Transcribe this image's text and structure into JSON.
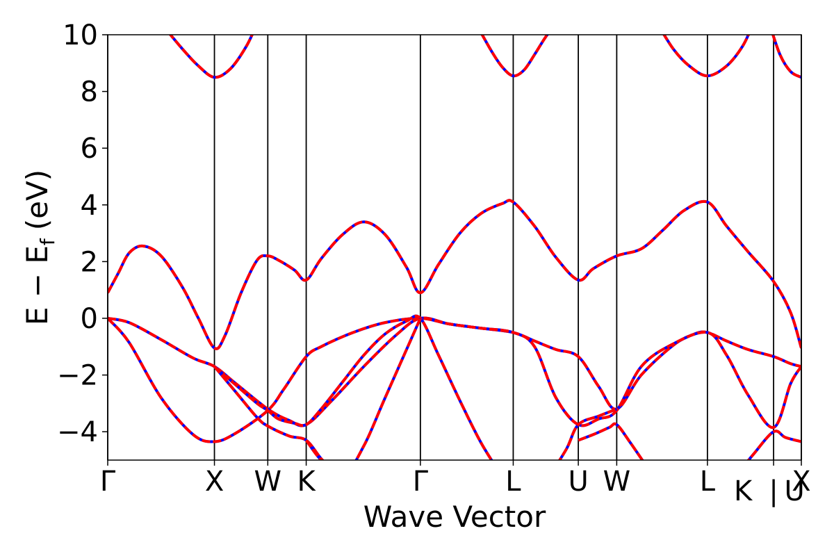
{
  "chart_data": {
    "type": "line",
    "xlabel": "Wave Vector",
    "ylabel_main": "E − E",
    "ylabel_sub": "f",
    "ylabel_unit": "(eV)",
    "xlim": [
      0,
      6.5
    ],
    "ylim": [
      -5,
      10
    ],
    "yticks": [
      -4,
      -2,
      0,
      2,
      4,
      6,
      8,
      10
    ],
    "ytick_labels": [
      "−4",
      "−2",
      "0",
      "2",
      "4",
      "6",
      "8",
      "10"
    ],
    "high_symmetry_points": [
      {
        "label": "Γ",
        "x": 0
      },
      {
        "label": "X",
        "x": 1.0
      },
      {
        "label": "W",
        "x": 1.5
      },
      {
        "label": "K",
        "x": 1.86
      },
      {
        "label": "Γ",
        "x": 2.93
      },
      {
        "label": "L",
        "x": 3.8
      },
      {
        "label": "U",
        "x": 4.41
      },
      {
        "label": "W",
        "x": 4.77
      },
      {
        "label": "L",
        "x": 5.62
      },
      {
        "label": "K",
        "x": 6.24
      },
      {
        "label": "|",
        "x": 6.24
      },
      {
        "label": "U",
        "x": 6.24
      },
      {
        "label": "X",
        "x": 6.5
      }
    ],
    "series_colors": {
      "spin_up": "#0000ff",
      "spin_down": "#ff0000"
    },
    "bands": [
      {
        "x": [
          0,
          0.1,
          0.2,
          0.33,
          0.5,
          0.7,
          0.85,
          1.0,
          1.1,
          1.25,
          1.4,
          1.5,
          1.6,
          1.75,
          1.86,
          2.0,
          2.2,
          2.4,
          2.6,
          2.8,
          2.93,
          3.1,
          3.3,
          3.5,
          3.7,
          3.8,
          4.0,
          4.2,
          4.41,
          4.55,
          4.77,
          5.0,
          5.2,
          5.4,
          5.62,
          5.8,
          6.0,
          6.24,
          6.4,
          6.5
        ],
        "y": [
          0.9,
          1.6,
          2.3,
          2.55,
          2.2,
          1.1,
          0.0,
          -1.05,
          -0.6,
          0.9,
          2.05,
          2.2,
          2.05,
          1.7,
          1.35,
          2.1,
          2.95,
          3.4,
          2.95,
          1.8,
          0.9,
          1.9,
          3.0,
          3.7,
          4.05,
          4.1,
          3.25,
          2.15,
          1.35,
          1.75,
          2.2,
          2.45,
          3.1,
          3.8,
          4.1,
          3.25,
          2.35,
          1.3,
          0.2,
          -1.05
        ]
      },
      {
        "x": [
          0,
          0.2,
          0.5,
          0.8,
          1.0,
          1.2,
          1.5,
          1.7,
          1.86,
          2.1,
          2.4,
          2.7,
          2.93,
          3.2,
          3.5,
          3.8,
          4.0,
          4.2,
          4.41,
          4.6,
          4.77,
          5.0,
          5.3,
          5.5,
          5.62,
          5.8,
          6.0,
          6.24,
          6.4,
          6.5
        ],
        "y": [
          0.0,
          -0.15,
          -0.75,
          -1.4,
          -1.7,
          -2.3,
          -3.2,
          -3.6,
          -3.75,
          -2.9,
          -1.7,
          -0.6,
          0.0,
          -0.2,
          -0.35,
          -0.5,
          -0.8,
          -1.1,
          -1.35,
          -2.4,
          -3.2,
          -2.0,
          -0.95,
          -0.55,
          -0.5,
          -0.8,
          -1.1,
          -1.35,
          -1.6,
          -1.7
        ]
      },
      {
        "x": [
          0,
          0.2,
          0.5,
          0.8,
          1.0,
          1.2,
          1.5,
          1.65,
          1.86,
          2.0,
          2.3,
          2.6,
          2.93,
          3.2,
          3.5,
          3.8,
          4.0,
          4.2,
          4.41,
          4.6,
          4.77,
          5.0,
          5.3,
          5.62,
          5.8,
          6.0,
          6.24,
          6.4,
          6.5
        ],
        "y": [
          0.0,
          -0.85,
          -2.8,
          -4.1,
          -4.35,
          -4.05,
          -3.25,
          -2.5,
          -1.35,
          -1.0,
          -0.5,
          -0.15,
          0.0,
          -0.2,
          -0.35,
          -0.5,
          -1.0,
          -2.8,
          -3.75,
          -3.55,
          -3.25,
          -1.7,
          -0.9,
          -0.5,
          -1.3,
          -2.7,
          -3.85,
          -2.3,
          -1.7
        ]
      },
      {
        "x": [
          1.0,
          1.2,
          1.4,
          1.5,
          1.6,
          1.75,
          1.86,
          2.0,
          2.2,
          2.4,
          2.6,
          2.8,
          2.93,
          3.1,
          3.3,
          3.5,
          3.7
        ],
        "y": [
          -1.7,
          -2.35,
          -3.0,
          -3.25,
          -3.55,
          -3.7,
          -3.75,
          -3.2,
          -2.25,
          -1.3,
          -0.55,
          -0.1,
          0.0,
          -1.3,
          -2.9,
          -4.4,
          -5.6
        ]
      },
      {
        "x": [
          1.0,
          1.2,
          1.4,
          1.5,
          1.7,
          1.86,
          2.0,
          2.1
        ],
        "y": [
          -1.7,
          -2.6,
          -3.5,
          -3.8,
          -4.15,
          -4.3,
          -4.95,
          -5.3
        ]
      },
      {
        "x": [
          1.86,
          2.0,
          2.2,
          2.4,
          2.6,
          2.93
        ],
        "y": [
          -4.3,
          -5.0,
          -5.6,
          -4.5,
          -2.8,
          0.0
        ]
      },
      {
        "x": [
          4.41,
          4.55,
          4.7,
          4.77,
          4.9,
          5.1
        ],
        "y": [
          -4.3,
          -4.1,
          -3.85,
          -3.75,
          -4.4,
          -5.5
        ]
      },
      {
        "x": [
          4.15,
          4.3,
          4.41,
          4.6,
          4.77
        ],
        "y": [
          -5.5,
          -4.6,
          -3.75,
          -3.45,
          -3.2
        ]
      },
      {
        "x": [
          5.9,
          6.05,
          6.24,
          6.35,
          6.5
        ],
        "y": [
          -5.5,
          -4.8,
          -4.0,
          -4.2,
          -4.35
        ]
      },
      {
        "x": [
          0.5,
          0.7,
          0.85,
          1.0,
          1.15,
          1.3,
          1.4
        ],
        "y": [
          10.4,
          9.5,
          8.9,
          8.5,
          8.8,
          9.6,
          10.4
        ]
      },
      {
        "x": [
          3.45,
          3.6,
          3.7,
          3.8,
          3.9,
          4.0,
          4.1,
          4.2
        ],
        "y": [
          10.4,
          9.4,
          8.85,
          8.55,
          8.75,
          9.3,
          9.9,
          10.4
        ]
      },
      {
        "x": [
          5.15,
          5.3,
          5.45,
          5.62,
          5.8,
          5.95,
          6.05
        ],
        "y": [
          10.4,
          9.5,
          8.9,
          8.55,
          8.9,
          9.6,
          10.4
        ]
      },
      {
        "x": [
          6.2,
          6.3,
          6.4,
          6.5
        ],
        "y": [
          10.4,
          9.3,
          8.7,
          8.5
        ]
      }
    ]
  }
}
